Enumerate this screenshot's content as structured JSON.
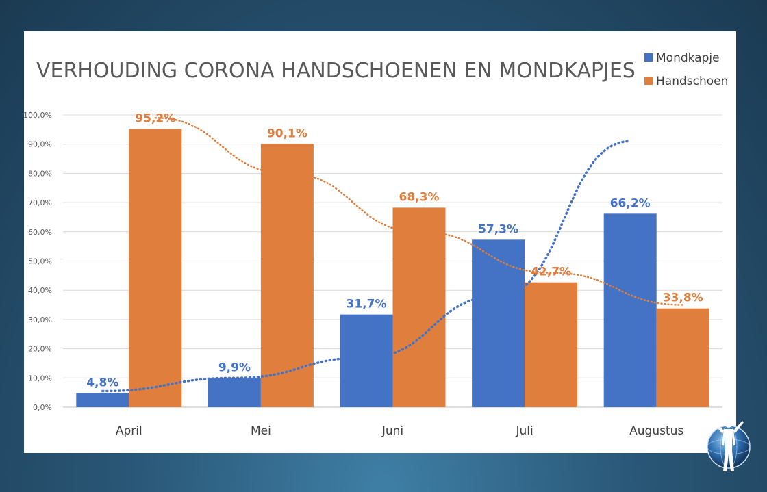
{
  "chart_data": {
    "type": "bar",
    "title": "VERHOUDING CORONA HANDSCHOENEN EN MONDKAPJES",
    "categories": [
      "April",
      "Mei",
      "Juni",
      "Juli",
      "Augustus"
    ],
    "series": [
      {
        "name": "Mondkapje",
        "color": "#4472c4",
        "values": [
          4.8,
          9.9,
          31.7,
          57.3,
          66.2
        ],
        "labels": [
          "4,8%",
          "9,9%",
          "31,7%",
          "57,3%",
          "66,2%"
        ]
      },
      {
        "name": "Handschoen",
        "color": "#e07f3d",
        "values": [
          95.2,
          90.1,
          68.3,
          42.7,
          33.8
        ],
        "labels": [
          "95,2%",
          "90,1%",
          "68,3%",
          "42,7%",
          "33,8%"
        ]
      }
    ],
    "trendlines": [
      {
        "series": "Mondkapje",
        "style": "dotted",
        "color": "#4472c4",
        "points": [
          [
            0,
            5.5
          ],
          [
            1,
            10
          ],
          [
            2,
            17
          ],
          [
            3,
            38
          ],
          [
            4,
            91
          ]
        ]
      },
      {
        "series": "Handschoen",
        "style": "dotted",
        "color": "#e07f3d",
        "points": [
          [
            0,
            99
          ],
          [
            1,
            80
          ],
          [
            2,
            60
          ],
          [
            3,
            46
          ],
          [
            4,
            35
          ]
        ]
      }
    ],
    "ylim": [
      0,
      100
    ],
    "yticks": [
      "0,0%",
      "10,0%",
      "20,0%",
      "30,0%",
      "40,0%",
      "50,0%",
      "60,0%",
      "70,0%",
      "80,0%",
      "90,0%",
      "100,0%"
    ],
    "grid": true,
    "legend_position": "top-right"
  },
  "logo": {
    "name": "globe-figure-logo"
  }
}
